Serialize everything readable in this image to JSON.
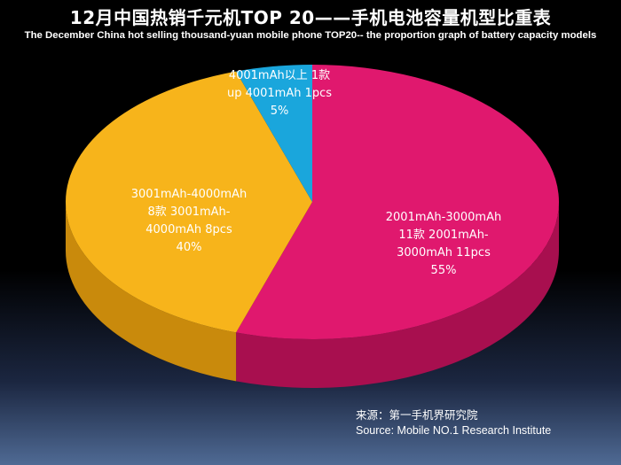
{
  "header": {
    "title": "12月中国热销千元机TOP 20——手机电池容量机型比重表",
    "subtitle": "The December China hot selling thousand-yuan mobile phone TOP20-- the proportion graph of battery capacity models"
  },
  "chart_data": {
    "type": "pie",
    "title": "12月中国热销千元机TOP 20——手机电池容量机型比重表",
    "categories": [
      "2001mAh-3000mAh",
      "3001mAh-4000mAh",
      "4001mAh以上"
    ],
    "values": [
      11,
      8,
      1
    ],
    "percentages": [
      55,
      40,
      5
    ],
    "colors": [
      "#e0186e",
      "#f7b41b",
      "#1aa6dc"
    ],
    "side_colors": [
      "#a80f4f",
      "#c98a0c",
      "#117aa6"
    ],
    "labels": [
      {
        "line1": "2001mAh-3000mAh",
        "line2": "11款 2001mAh-",
        "line3": "3000mAh 11pcs",
        "line4": "55%"
      },
      {
        "line1": "3001mAh-4000mAh",
        "line2": "8款 3001mAh-",
        "line3": "4000mAh 8pcs",
        "line4": "40%"
      },
      {
        "line1": "4001mAh以上 1款",
        "line2": "up 4001mAh 1pcs",
        "line3": "5%"
      }
    ],
    "style": "3d-pie"
  },
  "footer": {
    "source_cn": "来源：第一手机界研究院",
    "source_en": "Source: Mobile NO.1 Research Institute"
  }
}
